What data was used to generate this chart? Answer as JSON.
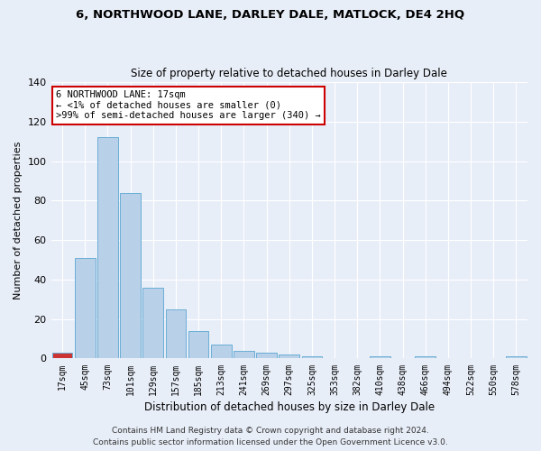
{
  "title": "6, NORTHWOOD LANE, DARLEY DALE, MATLOCK, DE4 2HQ",
  "subtitle": "Size of property relative to detached houses in Darley Dale",
  "xlabel": "Distribution of detached houses by size in Darley Dale",
  "ylabel": "Number of detached properties",
  "bar_color": "#b8d0e8",
  "bar_edge_color": "#6aaed6",
  "background_color": "#e8eef8",
  "fig_background_color": "#e8eef8",
  "categories": [
    "17sqm",
    "45sqm",
    "73sqm",
    "101sqm",
    "129sqm",
    "157sqm",
    "185sqm",
    "213sqm",
    "241sqm",
    "269sqm",
    "297sqm",
    "325sqm",
    "353sqm",
    "382sqm",
    "410sqm",
    "438sqm",
    "466sqm",
    "494sqm",
    "522sqm",
    "550sqm",
    "578sqm"
  ],
  "values": [
    3,
    51,
    112,
    84,
    36,
    25,
    14,
    7,
    4,
    3,
    2,
    1,
    0,
    0,
    1,
    0,
    1,
    0,
    0,
    0,
    1
  ],
  "ylim": [
    0,
    140
  ],
  "yticks": [
    0,
    20,
    40,
    60,
    80,
    100,
    120,
    140
  ],
  "annotation_text_line1": "6 NORTHWOOD LANE: 17sqm",
  "annotation_text_line2": "← <1% of detached houses are smaller (0)",
  "annotation_text_line3": ">99% of semi-detached houses are larger (340) →",
  "annotation_box_color": "white",
  "annotation_box_edge_color": "#cc0000",
  "highlight_bar_index": 0,
  "highlight_bar_color": "#cc3333",
  "footer_line1": "Contains HM Land Registry data © Crown copyright and database right 2024.",
  "footer_line2": "Contains public sector information licensed under the Open Government Licence v3.0."
}
